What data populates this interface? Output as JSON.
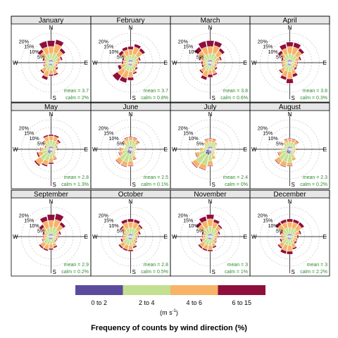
{
  "colors": {
    "bin1": "#5b4b9c",
    "bin2": "#c2e08f",
    "bin3": "#f7b366",
    "bin4": "#8f0f3c",
    "stat_text": "#2e8b2e",
    "strip": "#e6e6e6",
    "grid": "#bdbdbd"
  },
  "chart_data": {
    "type": "windrose",
    "title": "Frequency of counts by wind direction (%)",
    "directions": [
      "N",
      "NNE",
      "NE",
      "ENE",
      "E",
      "ESE",
      "SE",
      "SSE",
      "S",
      "SSW",
      "SW",
      "WSW",
      "W",
      "WNW",
      "NW",
      "NNW"
    ],
    "cardinals": [
      "N",
      "E",
      "S",
      "W"
    ],
    "rings": [
      5,
      10,
      15,
      20
    ],
    "ring_labels": [
      "5%",
      "10%",
      "15%",
      "20%"
    ],
    "legend": {
      "bins": [
        "0 to 2",
        "2 to 4",
        "4 to 6",
        "6 to 15"
      ],
      "unit_base": "(m s",
      "unit_exp": "-1",
      "unit_close": ")"
    },
    "panels": [
      {
        "month": "January",
        "mean": "mean = 3.7",
        "calm": "calm = 2%",
        "bins": [
          [
            2,
            4,
            5,
            4
          ],
          [
            2,
            5,
            6,
            3
          ],
          [
            2,
            4,
            4,
            2
          ],
          [
            1,
            3,
            3,
            1
          ],
          [
            1,
            2,
            2,
            0.5
          ],
          [
            1,
            2,
            1,
            0.5
          ],
          [
            1,
            2,
            2,
            1
          ],
          [
            2,
            3,
            3,
            1
          ],
          [
            2,
            3,
            3,
            1
          ],
          [
            2,
            4,
            4,
            2
          ],
          [
            2,
            3,
            3,
            1
          ],
          [
            1,
            2,
            2,
            0.5
          ],
          [
            1,
            2,
            1,
            0.5
          ],
          [
            1,
            2,
            2,
            1
          ],
          [
            2,
            3,
            4,
            2
          ],
          [
            2,
            4,
            5,
            4
          ]
        ]
      },
      {
        "month": "February",
        "mean": "mean = 3.7",
        "calm": "calm = 0.8%",
        "bins": [
          [
            2,
            3,
            4,
            2
          ],
          [
            2,
            4,
            5,
            2
          ],
          [
            2,
            4,
            4,
            2
          ],
          [
            1,
            3,
            2,
            1
          ],
          [
            1,
            2,
            2,
            0.5
          ],
          [
            1,
            2,
            1,
            0.5
          ],
          [
            1,
            2,
            2,
            1
          ],
          [
            2,
            3,
            2,
            1
          ],
          [
            2,
            4,
            4,
            2
          ],
          [
            2,
            4,
            5,
            3
          ],
          [
            2,
            4,
            5,
            4
          ],
          [
            1,
            3,
            3,
            2
          ],
          [
            1,
            2,
            2,
            1
          ],
          [
            1,
            2,
            2,
            1
          ],
          [
            2,
            3,
            3,
            2
          ],
          [
            2,
            3,
            4,
            2
          ]
        ]
      },
      {
        "month": "March",
        "mean": "mean = 3.8",
        "calm": "calm = 0.6%",
        "bins": [
          [
            2,
            4,
            5,
            4
          ],
          [
            2,
            5,
            5,
            3
          ],
          [
            2,
            4,
            4,
            2
          ],
          [
            1,
            3,
            3,
            1
          ],
          [
            1,
            2,
            2,
            0.5
          ],
          [
            1,
            2,
            1,
            0.5
          ],
          [
            1,
            2,
            2,
            1
          ],
          [
            2,
            3,
            3,
            1
          ],
          [
            2,
            3,
            3,
            2
          ],
          [
            2,
            4,
            4,
            2
          ],
          [
            2,
            3,
            3,
            1
          ],
          [
            1,
            2,
            2,
            1
          ],
          [
            1,
            2,
            2,
            1
          ],
          [
            1,
            3,
            3,
            1
          ],
          [
            2,
            4,
            4,
            3
          ],
          [
            2,
            4,
            5,
            4
          ]
        ]
      },
      {
        "month": "April",
        "mean": "mean = 3.8",
        "calm": "calm = 0.3%",
        "bins": [
          [
            2,
            4,
            5,
            3
          ],
          [
            2,
            4,
            5,
            3
          ],
          [
            2,
            4,
            4,
            2
          ],
          [
            1,
            3,
            3,
            1
          ],
          [
            1,
            2,
            2,
            0.5
          ],
          [
            1,
            2,
            2,
            0.5
          ],
          [
            1,
            2,
            2,
            1
          ],
          [
            2,
            3,
            3,
            2
          ],
          [
            2,
            4,
            5,
            3
          ],
          [
            2,
            4,
            4,
            2
          ],
          [
            2,
            3,
            3,
            1
          ],
          [
            1,
            2,
            2,
            0.5
          ],
          [
            1,
            2,
            2,
            0.5
          ],
          [
            1,
            2,
            2,
            1
          ],
          [
            2,
            3,
            3,
            2
          ],
          [
            2,
            4,
            4,
            3
          ]
        ]
      },
      {
        "month": "May",
        "mean": "mean = 2.8",
        "calm": "calm = 1.3%",
        "bins": [
          [
            2,
            4,
            3,
            1
          ],
          [
            2,
            4,
            3,
            1
          ],
          [
            2,
            3,
            2,
            1
          ],
          [
            1,
            2,
            1,
            0.5
          ],
          [
            1,
            2,
            1,
            0.5
          ],
          [
            1,
            1,
            1,
            0
          ],
          [
            1,
            2,
            1,
            0
          ],
          [
            2,
            3,
            2,
            0.5
          ],
          [
            2,
            4,
            3,
            1
          ],
          [
            3,
            5,
            3,
            1
          ],
          [
            3,
            6,
            4,
            1
          ],
          [
            2,
            4,
            3,
            1
          ],
          [
            2,
            3,
            2,
            0.5
          ],
          [
            1,
            2,
            1,
            0.5
          ],
          [
            2,
            3,
            2,
            0.5
          ],
          [
            2,
            4,
            3,
            1
          ]
        ]
      },
      {
        "month": "June",
        "mean": "mean = 2.5",
        "calm": "calm = 0.1%",
        "bins": [
          [
            2,
            4,
            2,
            0.5
          ],
          [
            2,
            4,
            2,
            0.5
          ],
          [
            2,
            3,
            2,
            0.5
          ],
          [
            1,
            2,
            1,
            0
          ],
          [
            1,
            2,
            1,
            0
          ],
          [
            1,
            1,
            1,
            0
          ],
          [
            1,
            2,
            1,
            0
          ],
          [
            2,
            3,
            2,
            0.5
          ],
          [
            3,
            5,
            3,
            0.5
          ],
          [
            3,
            6,
            3,
            0.5
          ],
          [
            3,
            6,
            3,
            0.5
          ],
          [
            2,
            4,
            2,
            0.5
          ],
          [
            2,
            3,
            2,
            0.5
          ],
          [
            1,
            2,
            1,
            0
          ],
          [
            2,
            3,
            2,
            0.5
          ],
          [
            2,
            4,
            2,
            0.5
          ]
        ]
      },
      {
        "month": "July",
        "mean": "mean = 2.4",
        "calm": "calm = 0%",
        "bins": [
          [
            2,
            3,
            2,
            0.5
          ],
          [
            2,
            3,
            2,
            0.5
          ],
          [
            2,
            3,
            1,
            0
          ],
          [
            1,
            2,
            1,
            0
          ],
          [
            1,
            2,
            1,
            0
          ],
          [
            1,
            1,
            1,
            0
          ],
          [
            1,
            2,
            1,
            0
          ],
          [
            2,
            3,
            2,
            0
          ],
          [
            3,
            5,
            3,
            0.5
          ],
          [
            4,
            7,
            3,
            0.5
          ],
          [
            4,
            8,
            3,
            0.5
          ],
          [
            3,
            5,
            2,
            0.5
          ],
          [
            2,
            3,
            2,
            0
          ],
          [
            1,
            2,
            1,
            0
          ],
          [
            2,
            3,
            1,
            0
          ],
          [
            2,
            3,
            2,
            0.5
          ]
        ]
      },
      {
        "month": "August",
        "mean": "mean = 2.3",
        "calm": "calm = 0.2%",
        "bins": [
          [
            2,
            3,
            2,
            0.5
          ],
          [
            2,
            3,
            2,
            0.5
          ],
          [
            2,
            3,
            2,
            0.5
          ],
          [
            1,
            2,
            1,
            0
          ],
          [
            1,
            2,
            1,
            0
          ],
          [
            1,
            2,
            1,
            0
          ],
          [
            1,
            2,
            1,
            0
          ],
          [
            2,
            4,
            2,
            0
          ],
          [
            3,
            6,
            2,
            0.5
          ],
          [
            3,
            6,
            3,
            0.5
          ],
          [
            3,
            6,
            3,
            0.5
          ],
          [
            2,
            4,
            2,
            0.5
          ],
          [
            2,
            3,
            1,
            0
          ],
          [
            1,
            2,
            1,
            0
          ],
          [
            2,
            3,
            1,
            0
          ],
          [
            2,
            3,
            2,
            0.5
          ]
        ]
      },
      {
        "month": "September",
        "mean": "mean = 2.9",
        "calm": "calm = 0.2%",
        "bins": [
          [
            2,
            4,
            5,
            4
          ],
          [
            2,
            5,
            5,
            4
          ],
          [
            2,
            4,
            4,
            2
          ],
          [
            1,
            3,
            2,
            1
          ],
          [
            1,
            2,
            2,
            0.5
          ],
          [
            1,
            2,
            1,
            0.5
          ],
          [
            1,
            2,
            1,
            0.5
          ],
          [
            2,
            3,
            2,
            1
          ],
          [
            2,
            3,
            3,
            1
          ],
          [
            2,
            4,
            3,
            1
          ],
          [
            2,
            4,
            3,
            1
          ],
          [
            1,
            3,
            2,
            0.5
          ],
          [
            1,
            2,
            2,
            0.5
          ],
          [
            1,
            2,
            2,
            1
          ],
          [
            2,
            3,
            3,
            2
          ],
          [
            2,
            4,
            5,
            3
          ]
        ]
      },
      {
        "month": "October",
        "mean": "mean = 2.8",
        "calm": "calm = 0.5%",
        "bins": [
          [
            2,
            4,
            4,
            2
          ],
          [
            2,
            4,
            4,
            2
          ],
          [
            2,
            4,
            3,
            1
          ],
          [
            1,
            3,
            2,
            1
          ],
          [
            1,
            2,
            2,
            0.5
          ],
          [
            1,
            2,
            1,
            0.5
          ],
          [
            1,
            2,
            2,
            0.5
          ],
          [
            2,
            3,
            2,
            1
          ],
          [
            2,
            4,
            3,
            1
          ],
          [
            2,
            4,
            3,
            1
          ],
          [
            2,
            4,
            3,
            1
          ],
          [
            1,
            3,
            2,
            1
          ],
          [
            1,
            2,
            2,
            0.5
          ],
          [
            1,
            2,
            2,
            0.5
          ],
          [
            2,
            3,
            3,
            1
          ],
          [
            2,
            4,
            4,
            2
          ]
        ]
      },
      {
        "month": "November",
        "mean": "mean = 3",
        "calm": "calm = 1%",
        "bins": [
          [
            2,
            5,
            5,
            3
          ],
          [
            2,
            4,
            4,
            2
          ],
          [
            2,
            4,
            3,
            1
          ],
          [
            1,
            3,
            2,
            1
          ],
          [
            1,
            2,
            2,
            0.5
          ],
          [
            1,
            2,
            1,
            0.5
          ],
          [
            1,
            2,
            2,
            0.5
          ],
          [
            2,
            3,
            2,
            1
          ],
          [
            2,
            4,
            3,
            1
          ],
          [
            2,
            4,
            3,
            1
          ],
          [
            2,
            4,
            3,
            1
          ],
          [
            1,
            3,
            2,
            1
          ],
          [
            1,
            2,
            2,
            0.5
          ],
          [
            1,
            2,
            2,
            1
          ],
          [
            2,
            4,
            4,
            2
          ],
          [
            2,
            4,
            5,
            3
          ]
        ]
      },
      {
        "month": "December",
        "mean": "mean = 3",
        "calm": "calm = 2.2%",
        "bins": [
          [
            2,
            4,
            4,
            2
          ],
          [
            2,
            4,
            4,
            2
          ],
          [
            2,
            4,
            4,
            2
          ],
          [
            1,
            3,
            3,
            1
          ],
          [
            1,
            2,
            2,
            1
          ],
          [
            1,
            2,
            2,
            0.5
          ],
          [
            1,
            2,
            2,
            1
          ],
          [
            2,
            3,
            3,
            1
          ],
          [
            2,
            4,
            4,
            2
          ],
          [
            2,
            4,
            4,
            2
          ],
          [
            2,
            4,
            3,
            1
          ],
          [
            1,
            3,
            2,
            1
          ],
          [
            1,
            2,
            2,
            0.5
          ],
          [
            1,
            3,
            2,
            1
          ],
          [
            2,
            4,
            4,
            2
          ],
          [
            2,
            4,
            4,
            2
          ]
        ]
      }
    ]
  }
}
